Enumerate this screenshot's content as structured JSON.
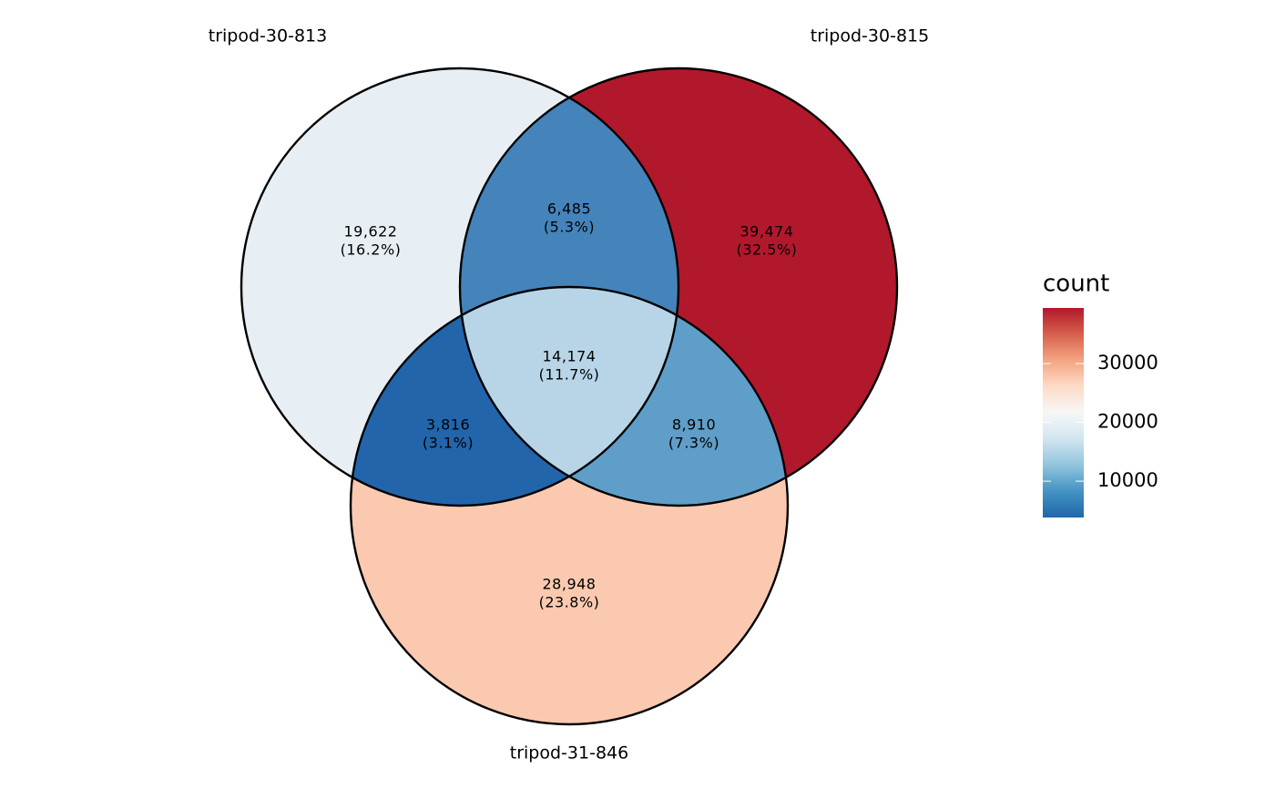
{
  "chart_data": {
    "type": "venn",
    "sets": [
      "tripod-30-813",
      "tripod-30-815",
      "tripod-31-846"
    ],
    "regions": {
      "values": [
        19622,
        39474,
        28948,
        6485,
        3816,
        8910,
        14174
      ],
      "value_labels": [
        "19,622",
        "39,474",
        "28,948",
        "6,485",
        "3,816",
        "8,910",
        "14,174"
      ],
      "percents": [
        16.2,
        32.5,
        23.8,
        5.3,
        3.1,
        7.3,
        11.7
      ],
      "percent_labels": [
        "(16.2%)",
        "(32.5%)",
        "(23.8%)",
        "(5.3%)",
        "(3.1%)",
        "(7.3%)",
        "(11.7%)"
      ],
      "colors": [
        "#e8eff4",
        "#b2182b",
        "#fac9b0",
        "#4583bb",
        "#2265ab",
        "#5f9ec8",
        "#b8d5e8"
      ]
    },
    "legend": {
      "title": "count",
      "lim": [
        3816,
        39474
      ],
      "ticks": [
        10000,
        20000,
        30000
      ],
      "gradient": [
        "#2166ac",
        "#4393c3",
        "#92c5de",
        "#d1e5f0",
        "#f7f7f7",
        "#fddbc7",
        "#f4a582",
        "#d6604d",
        "#b2182b"
      ]
    }
  }
}
